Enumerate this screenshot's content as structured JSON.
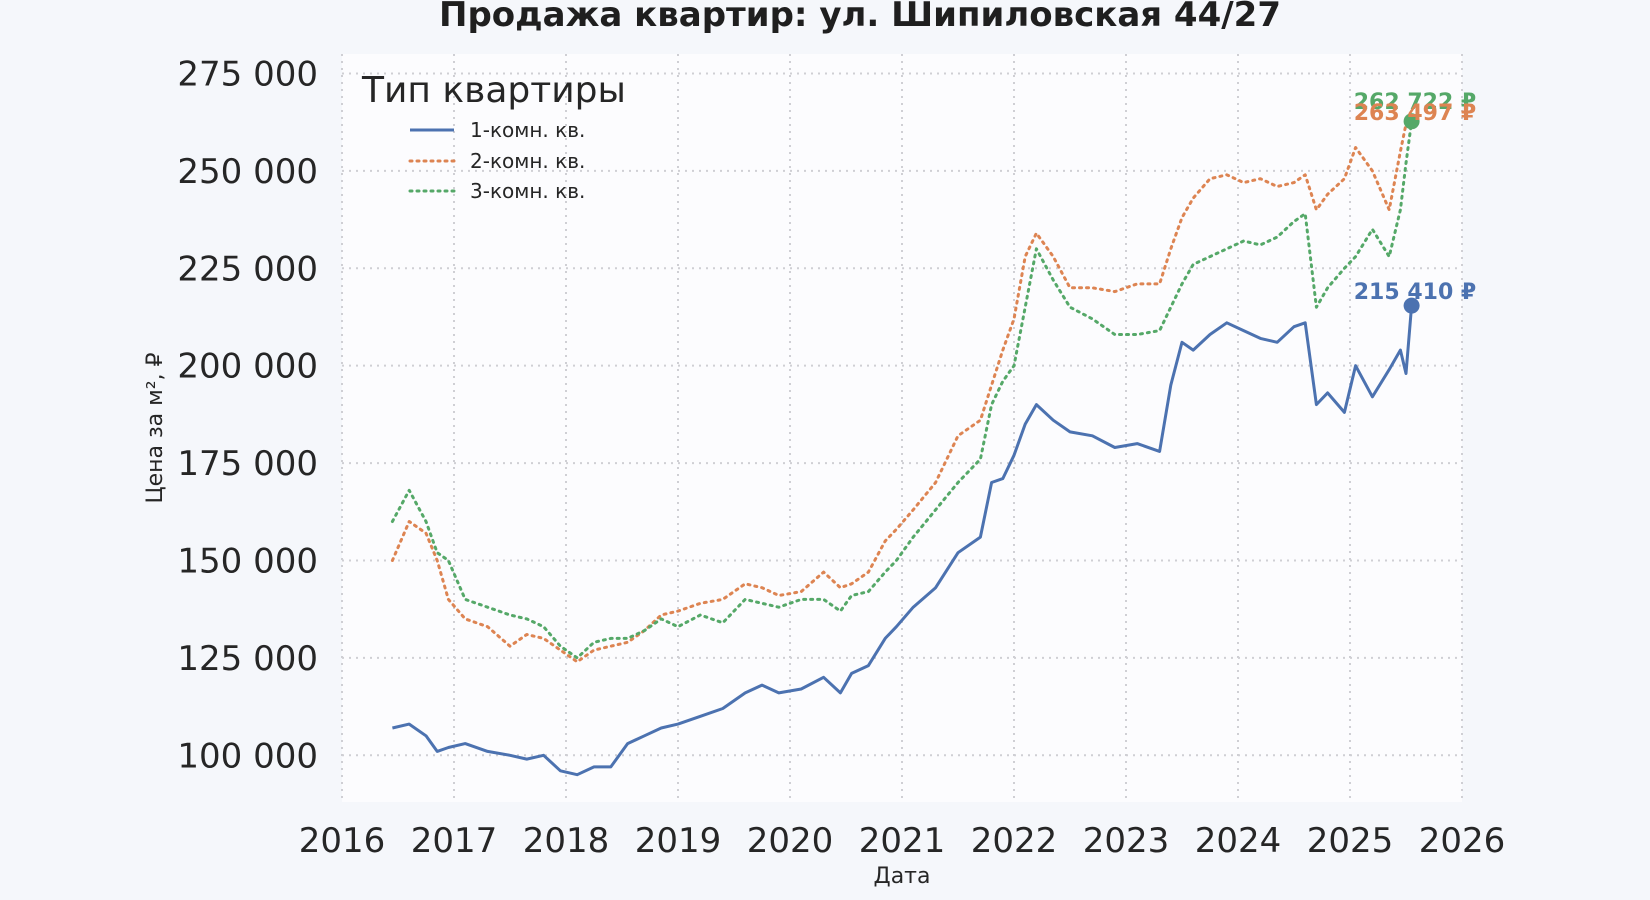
{
  "chart_data": {
    "type": "line",
    "title": "Продажа квартир: ул. Шипиловская 44/27",
    "xlabel": "Дата",
    "ylabel": "Цена за м², ₽",
    "xlim": [
      2016.0,
      2026.0
    ],
    "ylim": [
      88000,
      280000
    ],
    "x_ticks": [
      2016,
      2017,
      2018,
      2019,
      2020,
      2021,
      2022,
      2023,
      2024,
      2025,
      2026
    ],
    "y_ticks": [
      100000,
      125000,
      150000,
      175000,
      200000,
      225000,
      250000,
      275000
    ],
    "y_tick_labels": [
      "100 000",
      "125 000",
      "150 000",
      "175 000",
      "200 000",
      "225 000",
      "250 000",
      "275 000"
    ],
    "x_tick_labels": [
      "2016",
      "2017",
      "2018",
      "2019",
      "2020",
      "2021",
      "2022",
      "2023",
      "2024",
      "2025",
      "2026"
    ],
    "grid": true,
    "legend": {
      "title": "Тип квартиры",
      "placement": "top-left"
    },
    "series": [
      {
        "name": "1-комн. кв.",
        "color": "#4c72b0",
        "style": "solid",
        "x": [
          2016.45,
          2016.6,
          2016.75,
          2016.85,
          2016.95,
          2017.1,
          2017.3,
          2017.5,
          2017.65,
          2017.8,
          2017.95,
          2018.1,
          2018.25,
          2018.4,
          2018.55,
          2018.7,
          2018.85,
          2019.0,
          2019.2,
          2019.4,
          2019.6,
          2019.75,
          2019.9,
          2020.1,
          2020.3,
          2020.45,
          2020.55,
          2020.7,
          2020.85,
          2020.95,
          2021.1,
          2021.3,
          2021.5,
          2021.7,
          2021.8,
          2021.9,
          2022.0,
          2022.1,
          2022.2,
          2022.35,
          2022.5,
          2022.7,
          2022.9,
          2023.1,
          2023.3,
          2023.4,
          2023.5,
          2023.6,
          2023.75,
          2023.9,
          2024.05,
          2024.2,
          2024.35,
          2024.5,
          2024.6,
          2024.7,
          2024.8,
          2024.95,
          2025.05,
          2025.2,
          2025.35,
          2025.45,
          2025.5,
          2025.55
        ],
        "y": [
          107000,
          108000,
          105000,
          101000,
          102000,
          103000,
          101000,
          100000,
          99000,
          100000,
          96000,
          95000,
          97000,
          97000,
          103000,
          105000,
          107000,
          108000,
          110000,
          112000,
          116000,
          118000,
          116000,
          117000,
          120000,
          116000,
          121000,
          123000,
          130000,
          133000,
          138000,
          143000,
          152000,
          156000,
          170000,
          171000,
          177000,
          185000,
          190000,
          186000,
          183000,
          182000,
          179000,
          180000,
          178000,
          195000,
          206000,
          204000,
          208000,
          211000,
          209000,
          207000,
          206000,
          210000,
          211000,
          190000,
          193000,
          188000,
          200000,
          192000,
          199000,
          204000,
          198000,
          215410
        ]
      },
      {
        "name": "2-комн. кв.",
        "color": "#dd8452",
        "style": "dotted",
        "x": [
          2016.45,
          2016.6,
          2016.75,
          2016.85,
          2016.95,
          2017.1,
          2017.3,
          2017.5,
          2017.65,
          2017.8,
          2017.95,
          2018.1,
          2018.25,
          2018.4,
          2018.55,
          2018.7,
          2018.85,
          2019.0,
          2019.2,
          2019.4,
          2019.6,
          2019.75,
          2019.9,
          2020.1,
          2020.3,
          2020.45,
          2020.55,
          2020.7,
          2020.85,
          2020.95,
          2021.1,
          2021.3,
          2021.5,
          2021.7,
          2021.8,
          2021.9,
          2022.0,
          2022.1,
          2022.2,
          2022.35,
          2022.5,
          2022.7,
          2022.9,
          2023.1,
          2023.3,
          2023.4,
          2023.5,
          2023.6,
          2023.75,
          2023.9,
          2024.05,
          2024.2,
          2024.35,
          2024.5,
          2024.6,
          2024.7,
          2024.8,
          2024.95,
          2025.05,
          2025.2,
          2025.35,
          2025.45,
          2025.5,
          2025.55
        ],
        "y": [
          150000,
          160000,
          157000,
          150000,
          140000,
          135000,
          133000,
          128000,
          131000,
          130000,
          127000,
          124000,
          127000,
          128000,
          129000,
          132000,
          136000,
          137000,
          139000,
          140000,
          144000,
          143000,
          141000,
          142000,
          147000,
          143000,
          144000,
          147000,
          155000,
          158000,
          163000,
          170000,
          182000,
          186000,
          195000,
          204000,
          212000,
          228000,
          234000,
          228000,
          220000,
          220000,
          219000,
          221000,
          221000,
          230000,
          238000,
          243000,
          248000,
          249000,
          247000,
          248000,
          246000,
          247000,
          249000,
          240000,
          244000,
          248000,
          256000,
          250000,
          240000,
          255000,
          262000,
          263497
        ]
      },
      {
        "name": "3-комн. кв.",
        "color": "#55a868",
        "style": "dotted",
        "x": [
          2016.45,
          2016.6,
          2016.75,
          2016.85,
          2016.95,
          2017.1,
          2017.3,
          2017.5,
          2017.65,
          2017.8,
          2017.95,
          2018.1,
          2018.25,
          2018.4,
          2018.55,
          2018.7,
          2018.85,
          2019.0,
          2019.2,
          2019.4,
          2019.6,
          2019.75,
          2019.9,
          2020.1,
          2020.3,
          2020.45,
          2020.55,
          2020.7,
          2020.85,
          2020.95,
          2021.1,
          2021.3,
          2021.5,
          2021.7,
          2021.8,
          2021.9,
          2022.0,
          2022.1,
          2022.2,
          2022.35,
          2022.5,
          2022.7,
          2022.9,
          2023.1,
          2023.3,
          2023.4,
          2023.5,
          2023.6,
          2023.75,
          2023.9,
          2024.05,
          2024.2,
          2024.35,
          2024.5,
          2024.6,
          2024.7,
          2024.8,
          2024.95,
          2025.05,
          2025.2,
          2025.35,
          2025.45,
          2025.5,
          2025.55
        ],
        "y": [
          160000,
          168000,
          160000,
          152000,
          150000,
          140000,
          138000,
          136000,
          135000,
          133000,
          128000,
          125000,
          129000,
          130000,
          130000,
          132000,
          135000,
          133000,
          136000,
          134000,
          140000,
          139000,
          138000,
          140000,
          140000,
          137000,
          141000,
          142000,
          147000,
          150000,
          156000,
          163000,
          170000,
          176000,
          190000,
          196000,
          200000,
          215000,
          230000,
          222000,
          215000,
          212000,
          208000,
          208000,
          209000,
          215000,
          221000,
          226000,
          228000,
          230000,
          232000,
          231000,
          233000,
          237000,
          239000,
          215000,
          220000,
          225000,
          228000,
          235000,
          228000,
          240000,
          252000,
          262722
        ]
      }
    ],
    "end_labels": [
      "262 722 ₽",
      "263 497 ₽",
      "215 410 ₽"
    ]
  }
}
